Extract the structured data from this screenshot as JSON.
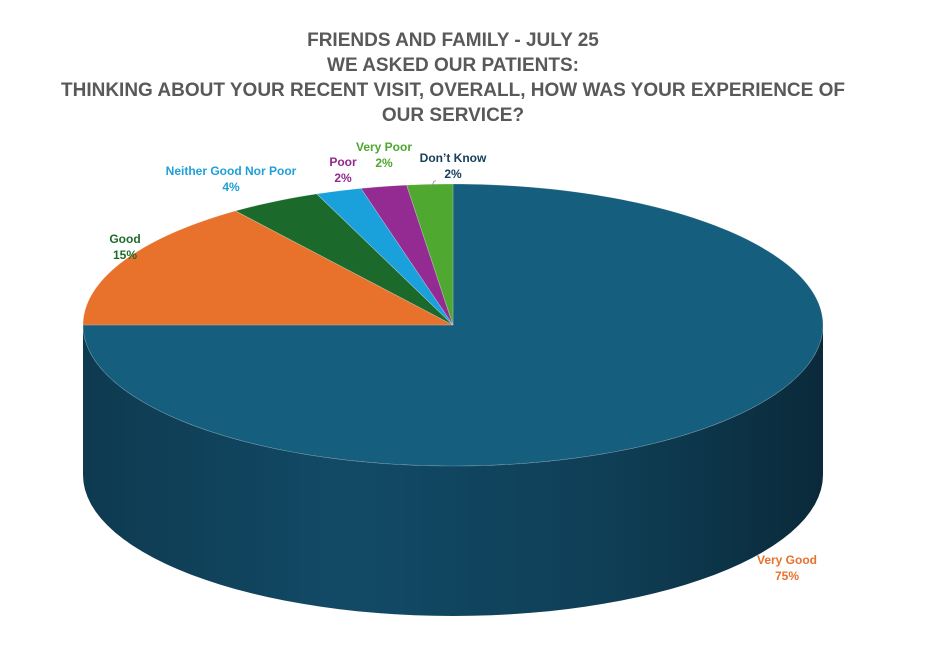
{
  "chart_data": {
    "type": "pie",
    "title_lines": [
      "FRIENDS AND FAMILY - JULY 25",
      "WE ASKED OUR PATIENTS:",
      "THINKING ABOUT YOUR RECENT VISIT, OVERALL, HOW WAS YOUR EXPERIENCE OF",
      "OUR SERVICE?"
    ],
    "slices": [
      {
        "label": "Very Good",
        "value": 75,
        "value_label": "75%",
        "color": "#165E7E",
        "label_color": "#E8712C"
      },
      {
        "label": "Good",
        "value": 15,
        "value_label": "15%",
        "color": "#E8712C",
        "label_color": "#1E6B2A"
      },
      {
        "label": "Neither Good Nor Poor",
        "value": 4,
        "value_label": "4%",
        "color": "#1B6A2C",
        "label_color": "#1FA0D8"
      },
      {
        "label": "Poor",
        "value": 2,
        "value_label": "2%",
        "color": "#1AA1DC",
        "label_color": "#8E2A8F"
      },
      {
        "label": "Very Poor",
        "value": 2,
        "value_label": "2%",
        "color": "#932B92",
        "label_color": "#4EA72E"
      },
      {
        "label": "Don’t Know",
        "value": 2,
        "value_label": "2%",
        "color": "#4FA830",
        "label_color": "#17405A"
      }
    ],
    "style": "3d-pie",
    "legend": "none"
  }
}
